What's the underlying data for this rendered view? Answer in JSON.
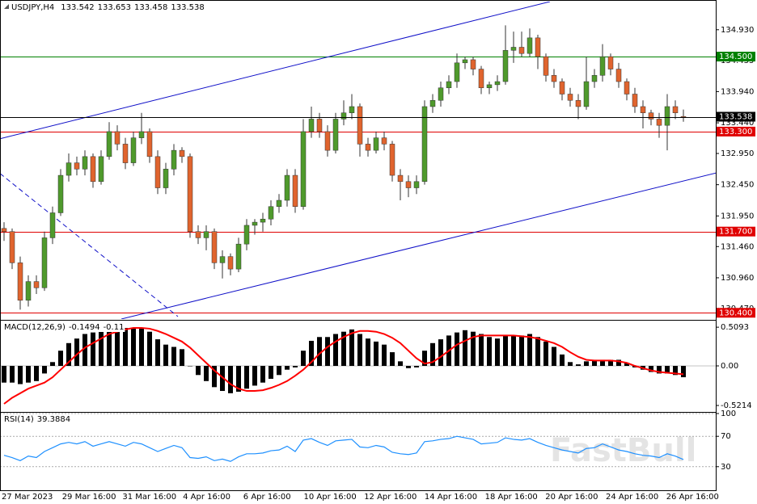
{
  "chart_data": {
    "type": "candlestick",
    "symbol": "USDJPY,H4",
    "up_color": "#4f9a2c",
    "down_color": "#e0642e",
    "ylim": [
      130.3,
      135.38
    ],
    "yticks": [
      {
        "value": 134.93,
        "label": "134.930"
      },
      {
        "value": 134.435,
        "label": "134.435"
      },
      {
        "value": 133.94,
        "label": "133.940"
      },
      {
        "value": 133.44,
        "label": "133.440"
      },
      {
        "value": 132.95,
        "label": "132.950"
      },
      {
        "value": 132.45,
        "label": "132.450"
      },
      {
        "value": 131.95,
        "label": "131.950"
      },
      {
        "value": 131.46,
        "label": "131.460"
      },
      {
        "value": 130.96,
        "label": "130.960"
      },
      {
        "value": 130.47,
        "label": "130.470"
      }
    ],
    "hlines": [
      {
        "value": 134.5,
        "label": "134.500",
        "color": "#008000"
      },
      {
        "value": 133.3,
        "label": "133.300",
        "color": "#e00000"
      },
      {
        "value": 131.7,
        "label": "131.700",
        "color": "#e00000"
      },
      {
        "value": 130.4,
        "label": "130.400",
        "color": "#e00000"
      }
    ],
    "trendlines": [
      {
        "x": [
          -0.5,
          67.5
        ],
        "y": [
          133.185,
          135.38
        ],
        "color": "#1010c8",
        "dashed": false
      },
      {
        "x": [
          14.5,
          88.1
        ],
        "y": [
          130.3,
          132.64
        ],
        "color": "#1010c8",
        "dashed": false
      },
      {
        "x": [
          -0.5,
          21.5
        ],
        "y": [
          132.63,
          130.34
        ],
        "color": "#1010c8",
        "dashed": true
      }
    ],
    "x_labels": [
      "27 Mar 2023",
      "29 Mar 16:00",
      "31 Mar 16:00",
      "4 Apr 16:00",
      "6 Apr 16:00",
      "10 Apr 16:00",
      "12 Apr 16:00",
      "14 Apr 16:00",
      "18 Apr 16:00",
      "20 Apr 16:00",
      "24 Apr 16:00",
      "26 Apr 16:00"
    ],
    "candles": [
      [
        131.75,
        131.85,
        131.55,
        131.7
      ],
      [
        131.7,
        131.75,
        131.1,
        131.2
      ],
      [
        131.2,
        131.3,
        130.45,
        130.6
      ],
      [
        130.6,
        131.0,
        130.5,
        130.9
      ],
      [
        130.9,
        131.0,
        130.7,
        130.8
      ],
      [
        130.8,
        131.7,
        130.75,
        131.6
      ],
      [
        131.6,
        132.1,
        131.5,
        132.0
      ],
      [
        132.0,
        132.7,
        131.95,
        132.6
      ],
      [
        132.6,
        132.95,
        132.5,
        132.8
      ],
      [
        132.8,
        132.9,
        132.6,
        132.7
      ],
      [
        132.7,
        133.0,
        132.6,
        132.9
      ],
      [
        132.9,
        132.95,
        132.4,
        132.5
      ],
      [
        132.5,
        133.0,
        132.45,
        132.9
      ],
      [
        132.9,
        133.45,
        132.85,
        133.3
      ],
      [
        133.3,
        133.4,
        133.0,
        133.1
      ],
      [
        133.1,
        133.2,
        132.7,
        132.8
      ],
      [
        132.8,
        133.3,
        132.75,
        133.2
      ],
      [
        133.2,
        133.6,
        133.1,
        133.3
      ],
      [
        133.3,
        133.35,
        132.8,
        132.9
      ],
      [
        132.9,
        133.0,
        132.3,
        132.4
      ],
      [
        132.4,
        132.8,
        132.3,
        132.7
      ],
      [
        132.7,
        133.1,
        132.6,
        133.0
      ],
      [
        133.0,
        133.05,
        132.8,
        132.9
      ],
      [
        132.9,
        132.95,
        131.6,
        131.7
      ],
      [
        131.7,
        131.8,
        131.5,
        131.6
      ],
      [
        131.6,
        131.8,
        131.4,
        131.7
      ],
      [
        131.7,
        131.75,
        131.1,
        131.2
      ],
      [
        131.2,
        131.4,
        130.95,
        131.3
      ],
      [
        131.3,
        131.35,
        131.0,
        131.1
      ],
      [
        131.1,
        131.6,
        131.05,
        131.5
      ],
      [
        131.5,
        131.9,
        131.4,
        131.8
      ],
      [
        131.8,
        131.9,
        131.65,
        131.85
      ],
      [
        131.85,
        132.0,
        131.7,
        131.9
      ],
      [
        131.9,
        132.2,
        131.8,
        132.1
      ],
      [
        132.1,
        132.3,
        132.0,
        132.2
      ],
      [
        132.2,
        132.7,
        132.1,
        132.6
      ],
      [
        132.6,
        132.7,
        132.0,
        132.1
      ],
      [
        132.1,
        133.5,
        132.05,
        133.3
      ],
      [
        133.3,
        133.7,
        133.2,
        133.5
      ],
      [
        133.5,
        133.6,
        133.2,
        133.3
      ],
      [
        133.3,
        133.4,
        132.9,
        133.0
      ],
      [
        133.0,
        133.6,
        132.95,
        133.5
      ],
      [
        133.5,
        133.8,
        133.4,
        133.6
      ],
      [
        133.6,
        133.9,
        133.5,
        133.7
      ],
      [
        133.7,
        133.75,
        132.9,
        133.1
      ],
      [
        133.1,
        133.2,
        132.9,
        133.0
      ],
      [
        133.0,
        133.3,
        132.95,
        133.2
      ],
      [
        133.2,
        133.3,
        133.0,
        133.1
      ],
      [
        133.1,
        133.15,
        132.5,
        132.6
      ],
      [
        132.6,
        132.7,
        132.2,
        132.5
      ],
      [
        132.5,
        132.6,
        132.25,
        132.4
      ],
      [
        132.4,
        132.6,
        132.3,
        132.5
      ],
      [
        132.5,
        133.8,
        132.45,
        133.7
      ],
      [
        133.7,
        133.9,
        133.6,
        133.8
      ],
      [
        133.8,
        134.1,
        133.7,
        134.0
      ],
      [
        134.0,
        134.2,
        133.9,
        134.1
      ],
      [
        134.1,
        134.55,
        134.0,
        134.4
      ],
      [
        134.4,
        134.5,
        134.3,
        134.45
      ],
      [
        134.45,
        134.5,
        134.2,
        134.3
      ],
      [
        134.3,
        134.35,
        133.9,
        134.0
      ],
      [
        134.0,
        134.1,
        133.9,
        134.05
      ],
      [
        134.05,
        134.2,
        133.95,
        134.1
      ],
      [
        134.1,
        135.0,
        134.05,
        134.6
      ],
      [
        134.6,
        134.9,
        134.4,
        134.65
      ],
      [
        134.65,
        134.9,
        134.5,
        134.55
      ],
      [
        134.55,
        134.95,
        134.5,
        134.8
      ],
      [
        134.8,
        134.85,
        134.3,
        134.5
      ],
      [
        134.5,
        134.55,
        134.1,
        134.2
      ],
      [
        134.2,
        134.3,
        134.0,
        134.1
      ],
      [
        134.1,
        134.15,
        133.8,
        133.9
      ],
      [
        133.9,
        134.0,
        133.7,
        133.8
      ],
      [
        133.8,
        133.9,
        133.5,
        133.7
      ],
      [
        133.7,
        134.5,
        133.65,
        134.1
      ],
      [
        134.1,
        134.3,
        134.0,
        134.2
      ],
      [
        134.2,
        134.7,
        134.1,
        134.5
      ],
      [
        134.5,
        134.55,
        134.2,
        134.3
      ],
      [
        134.3,
        134.4,
        134.0,
        134.1
      ],
      [
        134.1,
        134.15,
        133.8,
        133.9
      ],
      [
        133.9,
        134.0,
        133.6,
        133.7
      ],
      [
        133.7,
        133.8,
        133.35,
        133.6
      ],
      [
        133.6,
        133.65,
        133.4,
        133.5
      ],
      [
        133.5,
        133.6,
        133.2,
        133.4
      ],
      [
        133.4,
        133.9,
        133.0,
        133.7
      ],
      [
        133.7,
        133.8,
        133.5,
        133.6
      ],
      [
        133.542,
        133.653,
        133.458,
        133.538
      ]
    ],
    "macd": {
      "title": "MACD(12,26,9)",
      "bar_color": "#000000",
      "signal_color": "#ff0000",
      "ylim": [
        -0.585,
        0.585
      ],
      "yticks": [
        0.5093,
        {
          "value": 0,
          "label": "0.00"
        },
        -0.5214
      ],
      "histogram": [
        -0.22,
        -0.22,
        -0.24,
        -0.22,
        -0.2,
        -0.1,
        0.05,
        0.2,
        0.3,
        0.36,
        0.42,
        0.44,
        0.47,
        0.52,
        0.52,
        0.5,
        0.5,
        0.5,
        0.45,
        0.35,
        0.28,
        0.25,
        0.22,
        0.0,
        -0.12,
        -0.2,
        -0.28,
        -0.33,
        -0.36,
        -0.34,
        -0.3,
        -0.26,
        -0.22,
        -0.17,
        -0.12,
        -0.05,
        -0.02,
        0.2,
        0.33,
        0.38,
        0.38,
        0.42,
        0.45,
        0.48,
        0.42,
        0.36,
        0.32,
        0.28,
        0.18,
        0.06,
        -0.03,
        -0.02,
        0.2,
        0.3,
        0.35,
        0.4,
        0.44,
        0.47,
        0.45,
        0.42,
        0.38,
        0.36,
        0.4,
        0.4,
        0.4,
        0.42,
        0.38,
        0.32,
        0.25,
        0.15,
        0.05,
        0.02,
        0.06,
        0.08,
        0.08,
        0.08,
        0.08,
        0.04,
        -0.02,
        -0.05,
        -0.08,
        -0.1,
        -0.1,
        -0.12,
        -0.1494
      ],
      "signal": [
        -0.5,
        -0.42,
        -0.36,
        -0.3,
        -0.26,
        -0.22,
        -0.15,
        -0.05,
        0.05,
        0.15,
        0.24,
        0.3,
        0.36,
        0.42,
        0.45,
        0.48,
        0.5,
        0.5,
        0.49,
        0.46,
        0.42,
        0.37,
        0.32,
        0.24,
        0.14,
        0.04,
        -0.06,
        -0.15,
        -0.24,
        -0.3,
        -0.33,
        -0.33,
        -0.32,
        -0.29,
        -0.25,
        -0.2,
        -0.13,
        -0.05,
        0.05,
        0.16,
        0.25,
        0.32,
        0.38,
        0.43,
        0.46,
        0.46,
        0.45,
        0.42,
        0.37,
        0.3,
        0.2,
        0.1,
        0.03,
        0.05,
        0.12,
        0.2,
        0.28,
        0.33,
        0.38,
        0.4,
        0.4,
        0.4,
        0.4,
        0.4,
        0.39,
        0.38,
        0.36,
        0.33,
        0.3,
        0.25,
        0.18,
        0.12,
        0.08,
        0.07,
        0.07,
        0.07,
        0.06,
        0.04,
        0.0,
        -0.03,
        -0.06,
        -0.08,
        -0.09,
        -0.1,
        -0.11
      ]
    },
    "rsi": {
      "title": "RSI(14)",
      "color": "#1e90ff",
      "ylim": [
        0,
        100
      ],
      "yticks": [
        100,
        70,
        30
      ],
      "values": [
        45,
        42,
        38,
        44,
        42,
        50,
        55,
        60,
        62,
        60,
        63,
        57,
        60,
        63,
        60,
        57,
        62,
        60,
        55,
        50,
        54,
        58,
        55,
        42,
        41,
        43,
        38,
        40,
        37,
        43,
        47,
        47,
        48,
        51,
        52,
        57,
        50,
        65,
        67,
        62,
        58,
        64,
        65,
        66,
        56,
        55,
        58,
        56,
        49,
        47,
        46,
        48,
        63,
        64,
        66,
        67,
        70,
        68,
        66,
        60,
        61,
        62,
        68,
        66,
        65,
        67,
        62,
        58,
        55,
        52,
        50,
        48,
        54,
        55,
        60,
        56,
        52,
        50,
        47,
        45,
        44,
        42,
        47,
        44,
        39.3884
      ]
    },
    "watermark": "FastBull"
  }
}
